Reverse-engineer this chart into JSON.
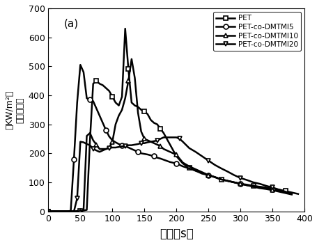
{
  "title_label": "(a)",
  "xlabel": "时间（s）",
  "ylabel_line1": "（KW/m²）",
  "ylabel_line2": "热释放速度",
  "xlim": [
    0,
    400
  ],
  "ylim": [
    0,
    700
  ],
  "xticks": [
    0,
    50,
    100,
    150,
    200,
    250,
    300,
    350,
    400
  ],
  "yticks": [
    0,
    100,
    200,
    300,
    400,
    500,
    600,
    700
  ],
  "series": [
    {
      "label": "PET",
      "marker": "s",
      "linewidth": 1.8,
      "markersize": 5,
      "x": [
        0,
        10,
        20,
        30,
        40,
        50,
        55,
        60,
        65,
        70,
        75,
        80,
        85,
        90,
        95,
        100,
        105,
        110,
        115,
        120,
        125,
        130,
        135,
        140,
        145,
        150,
        155,
        160,
        165,
        170,
        175,
        180,
        190,
        200,
        210,
        220,
        230,
        240,
        250,
        260,
        270,
        280,
        290,
        300,
        310,
        320,
        330,
        340,
        350,
        360,
        370,
        380,
        390
      ],
      "y": [
        0,
        0,
        0,
        0,
        0,
        2,
        3,
        5,
        245,
        440,
        450,
        440,
        435,
        425,
        415,
        395,
        375,
        365,
        395,
        630,
        490,
        375,
        365,
        360,
        350,
        345,
        335,
        315,
        305,
        300,
        285,
        270,
        230,
        190,
        165,
        150,
        140,
        130,
        125,
        118,
        110,
        105,
        100,
        95,
        90,
        87,
        85,
        82,
        78,
        75,
        70,
        65,
        60
      ]
    },
    {
      "label": "PET-co-DMTMI5",
      "marker": "o",
      "linewidth": 1.8,
      "markersize": 5,
      "x": [
        0,
        10,
        20,
        30,
        35,
        40,
        45,
        50,
        55,
        60,
        65,
        70,
        75,
        80,
        85,
        90,
        95,
        100,
        105,
        110,
        115,
        120,
        125,
        130,
        135,
        140,
        145,
        150,
        155,
        160,
        165,
        170,
        175,
        180,
        190,
        200,
        210,
        220,
        230,
        240,
        250,
        260,
        270,
        280,
        290,
        300,
        310,
        320,
        330,
        340,
        350,
        360,
        370,
        380
      ],
      "y": [
        0,
        0,
        0,
        0,
        2,
        180,
        375,
        505,
        480,
        390,
        385,
        380,
        355,
        330,
        305,
        280,
        258,
        245,
        238,
        232,
        228,
        225,
        220,
        215,
        210,
        205,
        200,
        198,
        196,
        193,
        190,
        185,
        182,
        178,
        170,
        165,
        155,
        148,
        140,
        133,
        125,
        118,
        110,
        105,
        100,
        95,
        92,
        88,
        84,
        80,
        75,
        70,
        65,
        60
      ]
    },
    {
      "label": "PET-co-DMTMI10",
      "marker": "^",
      "linewidth": 1.8,
      "markersize": 5,
      "x": [
        0,
        10,
        20,
        30,
        40,
        50,
        55,
        60,
        65,
        70,
        75,
        80,
        85,
        90,
        95,
        100,
        105,
        110,
        115,
        120,
        125,
        130,
        135,
        140,
        145,
        150,
        155,
        160,
        165,
        170,
        175,
        180,
        185,
        190,
        195,
        200,
        210,
        220,
        230,
        240,
        250,
        260,
        270,
        280,
        290,
        300,
        310,
        320,
        330,
        340,
        350,
        360,
        370,
        380
      ],
      "y": [
        0,
        0,
        0,
        0,
        0,
        0,
        5,
        260,
        270,
        245,
        230,
        215,
        215,
        215,
        220,
        240,
        300,
        330,
        350,
        390,
        450,
        525,
        460,
        340,
        275,
        250,
        245,
        240,
        235,
        230,
        225,
        215,
        210,
        205,
        200,
        195,
        168,
        155,
        145,
        135,
        125,
        118,
        110,
        105,
        100,
        95,
        90,
        85,
        80,
        77,
        73,
        68,
        63,
        58
      ]
    },
    {
      "label": "PET-co-DMTMI20",
      "marker": "v",
      "linewidth": 1.8,
      "markersize": 5,
      "x": [
        0,
        10,
        20,
        30,
        40,
        45,
        50,
        55,
        60,
        65,
        70,
        75,
        80,
        85,
        90,
        95,
        100,
        105,
        110,
        115,
        120,
        125,
        130,
        135,
        140,
        145,
        150,
        155,
        160,
        165,
        170,
        175,
        180,
        190,
        200,
        205,
        210,
        220,
        230,
        240,
        250,
        260,
        270,
        280,
        290,
        300,
        310,
        320,
        330,
        340,
        350,
        360,
        370,
        380
      ],
      "y": [
        0,
        0,
        0,
        0,
        0,
        45,
        240,
        238,
        232,
        228,
        215,
        210,
        205,
        210,
        215,
        218,
        220,
        220,
        222,
        224,
        225,
        228,
        228,
        230,
        232,
        235,
        235,
        238,
        240,
        242,
        244,
        250,
        255,
        255,
        255,
        250,
        240,
        218,
        205,
        190,
        175,
        160,
        148,
        137,
        125,
        115,
        108,
        100,
        95,
        88,
        82,
        75,
        68,
        62
      ]
    }
  ],
  "legend_loc": "upper right",
  "background_color": "#ffffff"
}
